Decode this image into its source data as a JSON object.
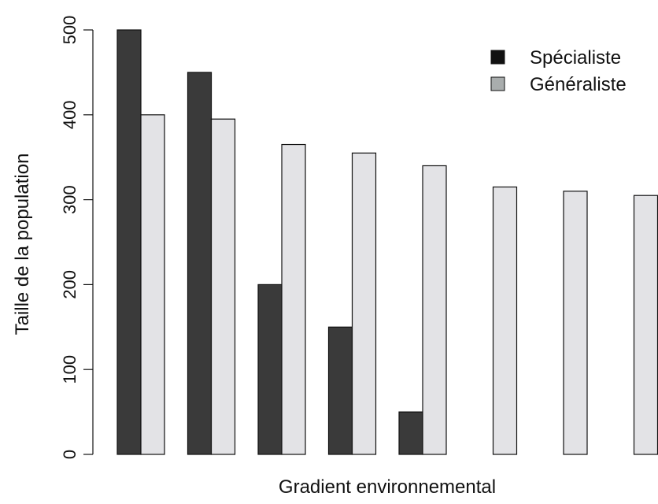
{
  "chart_data": {
    "type": "bar",
    "categories": [
      "",
      "",
      "",
      "",
      "",
      "",
      "",
      ""
    ],
    "series": [
      {
        "name": "Spécialiste",
        "values": [
          500,
          450,
          200,
          150,
          50,
          0,
          0,
          0
        ],
        "color": "#3a3a3a"
      },
      {
        "name": "Généraliste",
        "values": [
          400,
          395,
          365,
          355,
          340,
          315,
          310,
          305
        ],
        "color": "#e3e3e6"
      }
    ],
    "legend_swatch_colors": [
      "#111111",
      "#a9adad"
    ],
    "title": "",
    "xlabel": "Gradient environnemental",
    "ylabel": "Taille de la population",
    "ylim": [
      0,
      500
    ],
    "yticks": [
      0,
      100,
      200,
      300,
      400,
      500
    ],
    "grid": false,
    "legend_position": "top-right"
  }
}
